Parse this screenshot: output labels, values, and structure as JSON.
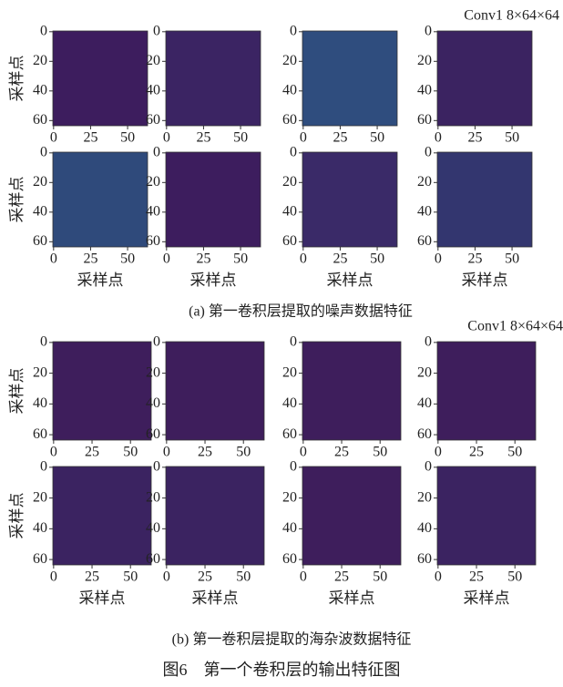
{
  "chart_data": [
    {
      "type": "heatmap",
      "color": "#3d1d5e",
      "xlim": [
        -0.5,
        63.5
      ],
      "ylim": [
        63.5,
        -0.5
      ],
      "xticks": [
        0,
        25,
        50
      ],
      "yticks": [
        0,
        20,
        40,
        60
      ],
      "ylabel": "采样点"
    },
    {
      "type": "heatmap",
      "color": "#3b2463",
      "xlim": [
        -0.5,
        63.5
      ],
      "ylim": [
        63.5,
        -0.5
      ],
      "xticks": [
        0,
        25,
        50
      ],
      "yticks": [
        0,
        20,
        40,
        60
      ]
    },
    {
      "type": "heatmap",
      "color": "#2f4d7e",
      "xlim": [
        -0.5,
        63.5
      ],
      "ylim": [
        63.5,
        -0.5
      ],
      "xticks": [
        0,
        25,
        50
      ],
      "yticks": [
        0,
        20,
        40,
        60
      ]
    },
    {
      "type": "heatmap",
      "color": "#3b2361",
      "xlim": [
        -0.5,
        63.5
      ],
      "ylim": [
        63.5,
        -0.5
      ],
      "xticks": [
        0,
        25,
        50
      ],
      "yticks": [
        0,
        20,
        40,
        60
      ],
      "annotation": "Conv1 8×64×64"
    },
    {
      "type": "heatmap",
      "color": "#2f4a7b",
      "xlim": [
        -0.5,
        63.5
      ],
      "ylim": [
        63.5,
        -0.5
      ],
      "xticks": [
        0,
        25,
        50
      ],
      "yticks": [
        0,
        20,
        40,
        60
      ],
      "ylabel": "采样点",
      "xlabel": "采样点"
    },
    {
      "type": "heatmap",
      "color": "#3d1d5e",
      "xlim": [
        -0.5,
        63.5
      ],
      "ylim": [
        63.5,
        -0.5
      ],
      "xticks": [
        0,
        25,
        50
      ],
      "yticks": [
        0,
        20,
        40,
        60
      ],
      "xlabel": "采样点"
    },
    {
      "type": "heatmap",
      "color": "#3a2a68",
      "xlim": [
        -0.5,
        63.5
      ],
      "ylim": [
        63.5,
        -0.5
      ],
      "xticks": [
        0,
        25,
        50
      ],
      "yticks": [
        0,
        20,
        40,
        60
      ],
      "xlabel": "采样点"
    },
    {
      "type": "heatmap",
      "color": "#33366f",
      "xlim": [
        -0.5,
        63.5
      ],
      "ylim": [
        63.5,
        -0.5
      ],
      "xticks": [
        0,
        25,
        50
      ],
      "yticks": [
        0,
        20,
        40,
        60
      ],
      "xlabel": "采样点"
    },
    {
      "type": "heatmap",
      "color": "#3e1e5c",
      "xlim": [
        -0.5,
        63.5
      ],
      "ylim": [
        63.5,
        -0.5
      ],
      "xticks": [
        0,
        25,
        50
      ],
      "yticks": [
        0,
        20,
        40,
        60
      ],
      "ylabel": "采样点"
    },
    {
      "type": "heatmap",
      "color": "#3e1e5c",
      "xlim": [
        -0.5,
        63.5
      ],
      "ylim": [
        63.5,
        -0.5
      ],
      "xticks": [
        0,
        25,
        50
      ],
      "yticks": [
        0,
        20,
        40,
        60
      ]
    },
    {
      "type": "heatmap",
      "color": "#3e1e5c",
      "xlim": [
        -0.5,
        63.5
      ],
      "ylim": [
        63.5,
        -0.5
      ],
      "xticks": [
        0,
        25,
        50
      ],
      "yticks": [
        0,
        20,
        40,
        60
      ]
    },
    {
      "type": "heatmap",
      "color": "#3e1e5c",
      "xlim": [
        -0.5,
        63.5
      ],
      "ylim": [
        63.5,
        -0.5
      ],
      "xticks": [
        0,
        25,
        50
      ],
      "yticks": [
        0,
        20,
        40,
        60
      ],
      "annotation": "Conv1 8×64×64"
    },
    {
      "type": "heatmap",
      "color": "#3b2361",
      "xlim": [
        -0.5,
        63.5
      ],
      "ylim": [
        63.5,
        -0.5
      ],
      "xticks": [
        0,
        25,
        50
      ],
      "yticks": [
        0,
        20,
        40,
        60
      ],
      "ylabel": "采样点",
      "xlabel": "采样点"
    },
    {
      "type": "heatmap",
      "color": "#3b2361",
      "xlim": [
        -0.5,
        63.5
      ],
      "ylim": [
        63.5,
        -0.5
      ],
      "xticks": [
        0,
        25,
        50
      ],
      "yticks": [
        0,
        20,
        40,
        60
      ],
      "xlabel": "采样点"
    },
    {
      "type": "heatmap",
      "color": "#3e1e5c",
      "xlim": [
        -0.5,
        63.5
      ],
      "ylim": [
        63.5,
        -0.5
      ],
      "xticks": [
        0,
        25,
        50
      ],
      "yticks": [
        0,
        20,
        40,
        60
      ],
      "xlabel": "采样点"
    },
    {
      "type": "heatmap",
      "color": "#3b2361",
      "xlim": [
        -0.5,
        63.5
      ],
      "ylim": [
        63.5,
        -0.5
      ],
      "xticks": [
        0,
        25,
        50
      ],
      "yticks": [
        0,
        20,
        40,
        60
      ],
      "xlabel": "采样点"
    }
  ],
  "captions": [
    "(a) 第一卷积层提取的噪声数据特征",
    "(b) 第一卷积层提取的海杂波数据特征"
  ],
  "figure_caption": "图6　第一个卷积层的输出特征图"
}
